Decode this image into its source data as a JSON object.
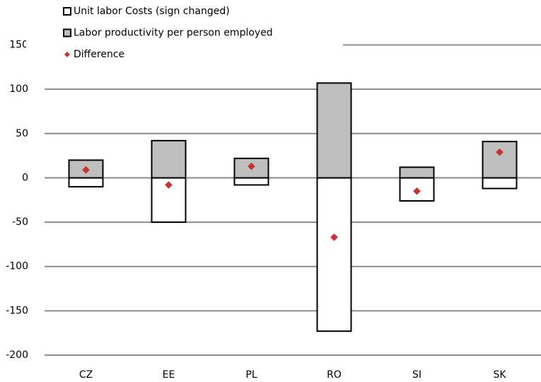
{
  "chart_data": {
    "type": "bar",
    "categories": [
      "CZ",
      "EE",
      "PL",
      "RO",
      "SI",
      "SK"
    ],
    "series": [
      {
        "name": "Unit labor Costs (sign changed)",
        "type": "bar",
        "color": "#ffffff",
        "values": [
          -10,
          -50,
          -8,
          -173,
          -26,
          -12
        ]
      },
      {
        "name": "Labor productivity per person employed",
        "type": "bar",
        "color": "#bfbfbf",
        "values": [
          20,
          42,
          22,
          107,
          12,
          41
        ]
      },
      {
        "name": "Difference",
        "type": "scatter",
        "color": "#d03030",
        "values": [
          9,
          -8,
          13,
          -67,
          -15,
          29
        ]
      }
    ],
    "ylim": [
      -200,
      150
    ],
    "yticks": [
      -200,
      -150,
      -100,
      -50,
      0,
      50,
      100,
      150
    ],
    "grid": true,
    "legend": "top-left"
  }
}
